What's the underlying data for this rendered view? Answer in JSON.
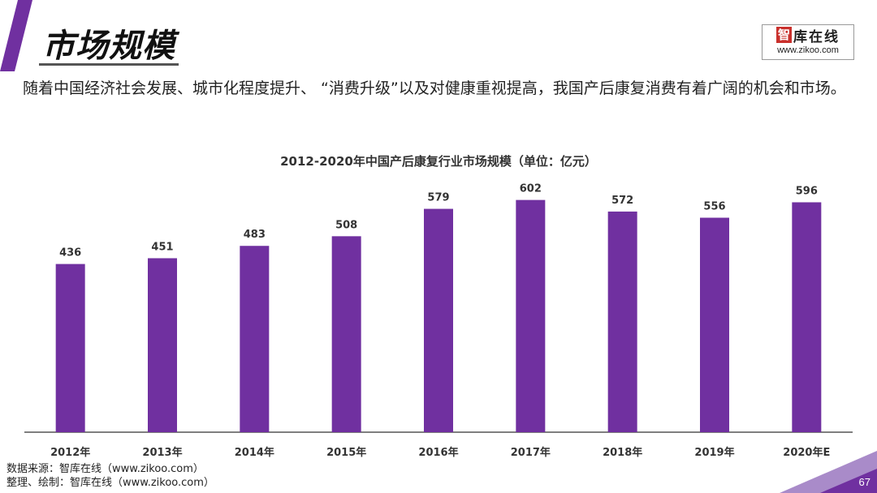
{
  "header": {
    "title": "市场规模",
    "logo_mark": "智",
    "logo_text": "库在线",
    "logo_url": "www.zikoo.com"
  },
  "intro_text": "随着中国经济社会发展、城市化程度提升、 “消费升级”以及对健康重视提高，我国产后康复消费有着广阔的机会和市场。",
  "chart_data": {
    "type": "bar",
    "title": "2012-2020年中国产后康复行业市场规模（单位：亿元）",
    "categories": [
      "2012年",
      "2013年",
      "2014年",
      "2015年",
      "2016年",
      "2017年",
      "2018年",
      "2019年",
      "2020年E"
    ],
    "values": [
      436,
      451,
      483,
      508,
      579,
      602,
      572,
      556,
      596
    ],
    "xlabel": "",
    "ylabel": "",
    "ylim": [
      0,
      700
    ],
    "grid": false,
    "legend": "none",
    "bar_color": "#7030a0"
  },
  "footer": {
    "source_line1": "数据来源：智库在线（www.zikoo.com）",
    "source_line2": "整理、绘制：智库在线（www.zikoo.com）",
    "page_number": "67"
  },
  "colors": {
    "accent": "#7030a0",
    "accent_light": "#a98bc9"
  }
}
